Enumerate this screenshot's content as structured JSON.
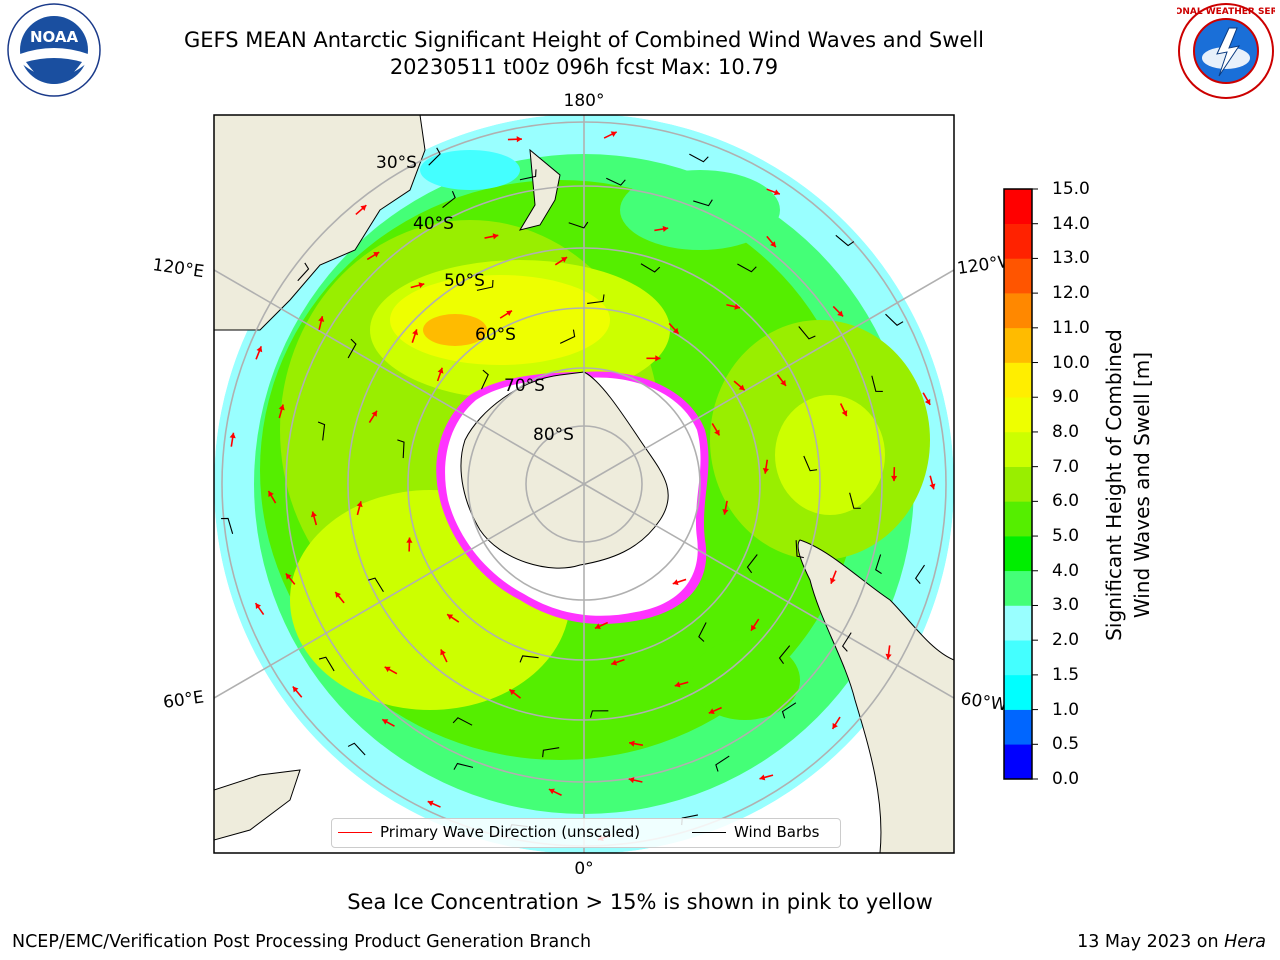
{
  "title": {
    "line1": "GEFS MEAN Antarctic Significant Height of Combined Wind Waves and Swell",
    "line2": "20230511 t00z 096h fcst   Max: 10.79"
  },
  "logos": {
    "left_text": "NOAA",
    "left_ring_text": "NATIONAL OCEANIC AND ATMOSPHERIC ADMINISTRATION · U.S. DEPARTMENT OF COMMERCE",
    "right_ring_text": "NATIONAL WEATHER SERVICE"
  },
  "map": {
    "longitude_labels": {
      "top": "180°",
      "bottom": "0°",
      "upper_left": "120°E",
      "lower_left": "60°E",
      "upper_right": "120°W",
      "lower_right": "60°W"
    },
    "latitude_labels": [
      "30°S",
      "40°S",
      "50°S",
      "60°S",
      "70°S",
      "80°S"
    ],
    "colors": {
      "land": "#eeecdc",
      "ice_shelf": "#ffffff",
      "sea_ice": "#ff33ff",
      "grid": "#b0b0b0",
      "wave_arrow": "#ff0000",
      "wind_barb": "#000000"
    }
  },
  "legend": {
    "wave_direction": "Primary Wave Direction (unscaled)",
    "wind_barbs": "Wind Barbs"
  },
  "colorbar": {
    "title_line1": "Significant Height of Combined",
    "title_line2": "Wind Waves and Swell [m]",
    "ticks": [
      "0.0",
      "0.5",
      "1.0",
      "1.5",
      "2.0",
      "3.0",
      "4.0",
      "5.0",
      "6.0",
      "7.0",
      "8.0",
      "9.0",
      "10.0",
      "11.0",
      "12.0",
      "13.0",
      "14.0",
      "15.0"
    ],
    "colors": [
      "#0000ff",
      "#0066ff",
      "#00ffff",
      "#44ffff",
      "#99ffff",
      "#44ff77",
      "#00ee00",
      "#55ee00",
      "#99ee00",
      "#ccff00",
      "#eeff00",
      "#ffee00",
      "#ffbb00",
      "#ff8800",
      "#ff5500",
      "#ff2200",
      "#ff0000"
    ]
  },
  "footnote": "Sea Ice Concentration > 15% is shown in pink to yellow",
  "footer": {
    "left": "NCEP/EMC/Verification Post Processing Product Generation Branch",
    "right_prefix": "13 May 2023 on ",
    "right_italic": "Hera"
  }
}
